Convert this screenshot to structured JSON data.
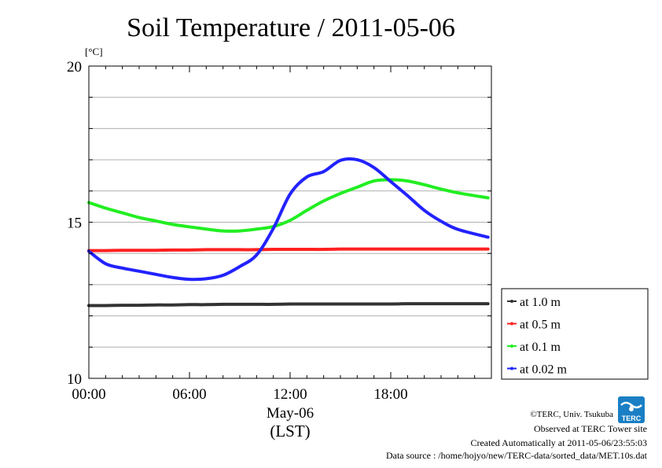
{
  "chart_data": {
    "type": "line",
    "title": "Soil Temperature / 2011-05-06",
    "unit_label": "[°C]",
    "xlabel": "May-06",
    "xlabel2": "(LST)",
    "xlim": [
      0,
      24
    ],
    "ylim": [
      10,
      20
    ],
    "x_ticks": [
      0,
      6,
      12,
      18
    ],
    "x_tick_labels": [
      "00:00",
      "06:00",
      "12:00",
      "18:00"
    ],
    "y_ticks": [
      10,
      15,
      20
    ],
    "y_tick_labels": [
      "10",
      "15",
      "20"
    ],
    "grid": true,
    "legend_position": "right",
    "x": [
      0,
      1,
      2,
      3,
      4,
      5,
      6,
      7,
      8,
      9,
      10,
      11,
      12,
      13,
      14,
      15,
      16,
      17,
      18,
      19,
      20,
      21,
      22,
      23.8
    ],
    "series": [
      {
        "name": "at 1.0 m",
        "color": "#333333",
        "values": [
          12.33,
          12.33,
          12.34,
          12.34,
          12.35,
          12.35,
          12.36,
          12.36,
          12.37,
          12.37,
          12.37,
          12.37,
          12.38,
          12.38,
          12.38,
          12.38,
          12.38,
          12.38,
          12.38,
          12.39,
          12.39,
          12.39,
          12.39,
          12.39
        ]
      },
      {
        "name": "at 0.5 m",
        "color": "#ff2020",
        "values": [
          14.09,
          14.09,
          14.1,
          14.1,
          14.1,
          14.11,
          14.11,
          14.12,
          14.12,
          14.12,
          14.12,
          14.13,
          14.13,
          14.13,
          14.13,
          14.14,
          14.14,
          14.14,
          14.14,
          14.14,
          14.14,
          14.14,
          14.14,
          14.14
        ]
      },
      {
        "name": "at 0.1 m",
        "color": "#22ee22",
        "values": [
          15.63,
          15.45,
          15.3,
          15.15,
          15.04,
          14.93,
          14.85,
          14.78,
          14.72,
          14.72,
          14.78,
          14.86,
          15.06,
          15.38,
          15.68,
          15.92,
          16.12,
          16.32,
          16.36,
          16.32,
          16.2,
          16.06,
          15.94,
          15.78
        ]
      },
      {
        "name": "at 0.02 m",
        "color": "#2222ff",
        "values": [
          14.07,
          13.67,
          13.53,
          13.43,
          13.33,
          13.23,
          13.17,
          13.19,
          13.3,
          13.58,
          13.95,
          14.8,
          15.9,
          16.45,
          16.62,
          16.98,
          17.0,
          16.75,
          16.3,
          15.85,
          15.38,
          15.03,
          14.77,
          14.52
        ]
      }
    ]
  },
  "credits": {
    "line1": "©TERC, Univ. Tsukuba",
    "line2": "Observed at TERC Tower site",
    "line3": "Created Automatically at 2011-05-06/23:55:03",
    "line4": "Data source : /home/hojyo/new/TERC-data/sorted_data/MET.10s.dat"
  },
  "logo_text": "TERC",
  "logo_color": "#1a7fc4"
}
